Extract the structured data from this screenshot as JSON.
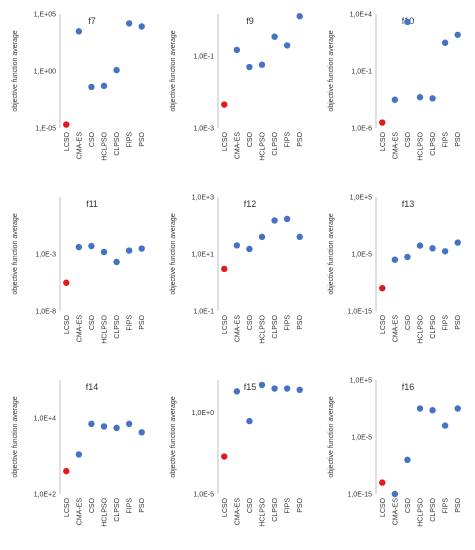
{
  "colors": {
    "highlight": "#e31a1c",
    "series": "#4472c4",
    "axis": "#bfbfbf",
    "text": "#333333"
  },
  "chart_data": [
    {
      "type": "scatter",
      "title": "f7",
      "ylabel": "objective function average",
      "yscale": "log",
      "ylim": [
        1e-05,
        100000.0
      ],
      "yticks": [
        "1,E+05",
        "1,E+00",
        "1,E-05"
      ],
      "categories": [
        "LCSO",
        "CMA-ES",
        "CSO",
        "HCLPSO",
        "CLPSO",
        "FIPS",
        "PSO"
      ],
      "values": [
        2e-05,
        3000,
        0.04,
        0.05,
        1.2,
        15000,
        8000
      ],
      "highlight_index": 0
    },
    {
      "type": "scatter",
      "title": "f9",
      "ylabel": "objective function average",
      "yscale": "log",
      "ylim": [
        0.001,
        1.5
      ],
      "yticks": [
        "1,0E-1",
        "1,0E-3"
      ],
      "categories": [
        "LCSO",
        "CMA-ES",
        "CSO",
        "HCLPSO",
        "CLPSO",
        "FIPS",
        "PSO"
      ],
      "values": [
        0.0045,
        0.15,
        0.05,
        0.058,
        0.35,
        0.2,
        1.3
      ],
      "highlight_index": 0
    },
    {
      "type": "scatter",
      "title": "f10",
      "ylabel": "objective function average",
      "yscale": "log",
      "ylim": [
        1e-06,
        10000.0
      ],
      "yticks": [
        "1,0E+4",
        "1,0E-1",
        "1,0E-6"
      ],
      "categories": [
        "LCSO",
        "CMA-ES",
        "CSO",
        "HCLPSO",
        "CLPSO",
        "FIPS",
        "PSO"
      ],
      "values": [
        3e-06,
        0.0003,
        2000,
        0.0005,
        0.0004,
        30,
        150
      ],
      "highlight_index": 0
    },
    {
      "type": "scatter",
      "title": "f11",
      "ylabel": "objective function average",
      "yscale": "log",
      "ylim": [
        1e-08,
        100.0
      ],
      "yticks": [
        "1,0E-3",
        "1,0E-8"
      ],
      "categories": [
        "LCSO",
        "CMA-ES",
        "CSO",
        "HCLPSO",
        "CLPSO",
        "FIPS",
        "PSO"
      ],
      "values": [
        3e-06,
        0.004,
        0.005,
        0.0015,
        0.0002,
        0.002,
        0.003
      ],
      "highlight_index": 0
    },
    {
      "type": "scatter",
      "title": "f12",
      "ylabel": "objective function average",
      "yscale": "log",
      "ylim": [
        0.1,
        1000
      ],
      "yticks": [
        "1,0E+3",
        "1,0E+1",
        "1,0E-1"
      ],
      "categories": [
        "LCSO",
        "CMA-ES",
        "CSO",
        "HCLPSO",
        "CLPSO",
        "FIPS",
        "PSO"
      ],
      "values": [
        3,
        20,
        15,
        40,
        150,
        170,
        40
      ],
      "highlight_index": 0
    },
    {
      "type": "scatter",
      "title": "f13",
      "ylabel": "objective function average",
      "yscale": "log",
      "ylim": [
        1e-15,
        100000.0
      ],
      "yticks": [
        "1,0E+5",
        "1,0E-5",
        "1,0E-15"
      ],
      "categories": [
        "LCSO",
        "CMA-ES",
        "CSO",
        "HCLPSO",
        "CLPSO",
        "FIPS",
        "PSO"
      ],
      "values": [
        1e-11,
        1e-06,
        3e-06,
        0.0003,
        0.0001,
        3e-05,
        0.001
      ],
      "highlight_index": 0
    },
    {
      "type": "scatter",
      "title": "f14",
      "ylabel": "objective function average",
      "yscale": "log",
      "ylim": [
        100,
        100000
      ],
      "yticks": [
        "1,0E+4",
        "1,0E+2"
      ],
      "categories": [
        "LCSO",
        "CMA-ES",
        "CSO",
        "HCLPSO",
        "CLPSO",
        "FIPS",
        "PSO"
      ],
      "values": [
        400,
        1100,
        7000,
        6000,
        5500,
        7000,
        4200
      ],
      "highlight_index": 0
    },
    {
      "type": "scatter",
      "title": "f15",
      "ylabel": "objective function average",
      "yscale": "log",
      "ylim": [
        1e-05,
        100
      ],
      "yticks": [
        "1,0E+0",
        "1,0E-5"
      ],
      "categories": [
        "LCSO",
        "CMA-ES",
        "CSO",
        "HCLPSO",
        "CLPSO",
        "FIPS",
        "PSO"
      ],
      "values": [
        0.002,
        20,
        0.3,
        50,
        30,
        30,
        25
      ],
      "highlight_index": 0
    },
    {
      "type": "scatter",
      "title": "f16",
      "ylabel": "objective function average",
      "yscale": "log",
      "ylim": [
        1e-15,
        100000.0
      ],
      "yticks": [
        "1,0E+5",
        "1,0E-5",
        "1,0E-15"
      ],
      "categories": [
        "LCSO",
        "CMA-ES",
        "CSO",
        "HCLPSO",
        "CLPSO",
        "FIPS",
        "PSO"
      ],
      "values": [
        1e-13,
        1e-15,
        1e-09,
        1,
        0.5,
        0.001,
        1
      ],
      "highlight_index": 0
    }
  ]
}
